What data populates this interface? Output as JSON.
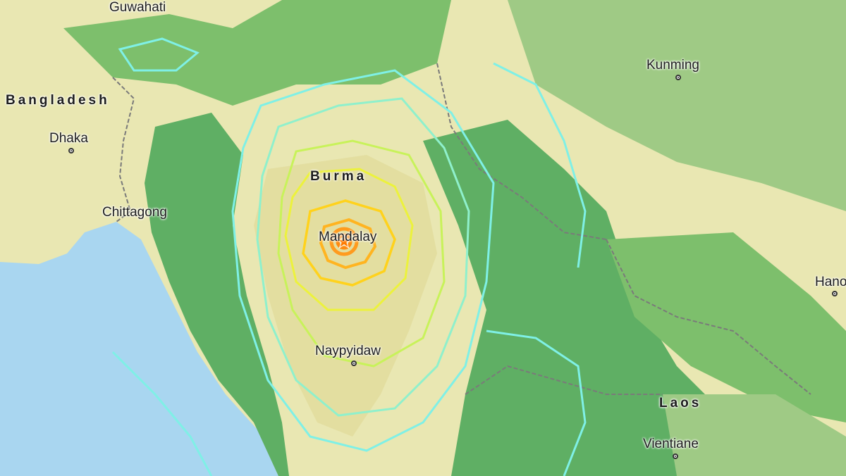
{
  "map": {
    "colors": {
      "water": "#a9d6f0",
      "lowland": "#e9e7b2",
      "forest": "#5faf64",
      "upland": "#9fca85",
      "intensity_low": "#7ff0e6",
      "intensity_mid": "#c8f25a",
      "intensity_high": "#ffd21c",
      "intensity_max": "#ff9b1e",
      "border": "#7a7a7a"
    },
    "countries": [
      {
        "name": "Bangladesh"
      },
      {
        "name": "Burma"
      },
      {
        "name": "Laos"
      }
    ],
    "cities": [
      {
        "name": "Guwahati",
        "marker": false
      },
      {
        "name": "Dhaka",
        "marker": true
      },
      {
        "name": "Chittagong",
        "marker": false
      },
      {
        "name": "Mandalay",
        "marker": false
      },
      {
        "name": "Naypyidaw",
        "marker": true
      },
      {
        "name": "Kunming",
        "marker": true
      },
      {
        "name": "Hanoi",
        "marker": true
      },
      {
        "name": "Vientiane",
        "marker": true
      }
    ],
    "epicenter": {
      "icon": "epicenter-star-icon"
    }
  }
}
